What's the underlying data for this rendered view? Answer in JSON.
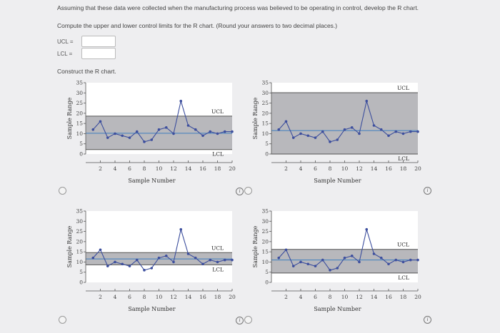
{
  "question": {
    "line1": "Assuming that these data were collected when the manufacturing process was believed to be operating in control, develop the R chart.",
    "line2": "Compute the upper and lower control limits for the R chart. (Round your answers to two decimal places.)",
    "ucl_label": "UCL =",
    "lcl_label": "LCL =",
    "ucl_value": "",
    "lcl_value": "",
    "construct": "Construct the R chart."
  },
  "info_glyph": "i",
  "chart_data": [
    {
      "type": "line",
      "xlabel": "Sample Number",
      "ylabel": "Sample Range",
      "ylim": [
        0,
        35
      ],
      "yticks": [
        0,
        5,
        10,
        15,
        20,
        25,
        30,
        35
      ],
      "xlim": [
        0,
        20
      ],
      "xticks": [
        2,
        4,
        6,
        8,
        10,
        12,
        14,
        16,
        18,
        20
      ],
      "ucl": 18.6,
      "lcl": 2.2,
      "center": 10.2,
      "ucl_label": "UCL",
      "lcl_label": "LCL",
      "x": [
        1,
        2,
        3,
        4,
        5,
        6,
        7,
        8,
        9,
        10,
        11,
        12,
        13,
        14,
        15,
        16,
        17,
        18,
        19,
        20
      ],
      "values": [
        12,
        16,
        8,
        10,
        9,
        8,
        11,
        6,
        7,
        12,
        13,
        10,
        26,
        14,
        12,
        9,
        11,
        10,
        11,
        11
      ]
    },
    {
      "type": "line",
      "xlabel": "Sample Number",
      "ylabel": "Sample Range",
      "ylim": [
        0,
        35
      ],
      "yticks": [
        0,
        5,
        10,
        15,
        20,
        25,
        30,
        35
      ],
      "xlim": [
        0,
        20
      ],
      "xticks": [
        2,
        4,
        6,
        8,
        10,
        12,
        14,
        16,
        18,
        20
      ],
      "ucl": 30.1,
      "lcl": 0.0,
      "center": 11.5,
      "ucl_label": "UCL",
      "lcl_label": "LCL",
      "x": [
        1,
        2,
        3,
        4,
        5,
        6,
        7,
        8,
        9,
        10,
        11,
        12,
        13,
        14,
        15,
        16,
        17,
        18,
        19,
        20
      ],
      "values": [
        12,
        16,
        8,
        10,
        9,
        8,
        11,
        6,
        7,
        12,
        13,
        10,
        26,
        14,
        12,
        9,
        11,
        10,
        11,
        11
      ]
    },
    {
      "type": "line",
      "xlabel": "Sample Number",
      "ylabel": "Sample Range",
      "ylim": [
        0,
        35
      ],
      "yticks": [
        0,
        5,
        10,
        15,
        20,
        25,
        30,
        35
      ],
      "xlim": [
        0,
        20
      ],
      "xticks": [
        2,
        4,
        6,
        8,
        10,
        12,
        14,
        16,
        18,
        20
      ],
      "ucl": 14.6,
      "lcl": 8.6,
      "center": 11.5,
      "ucl_label": "UCL",
      "lcl_label": "LCL",
      "x": [
        1,
        2,
        3,
        4,
        5,
        6,
        7,
        8,
        9,
        10,
        11,
        12,
        13,
        14,
        15,
        16,
        17,
        18,
        19,
        20
      ],
      "values": [
        12,
        16,
        8,
        10,
        9,
        8,
        11,
        6,
        7,
        12,
        13,
        10,
        26,
        14,
        12,
        9,
        11,
        10,
        11,
        11
      ]
    },
    {
      "type": "line",
      "xlabel": "Sample Number",
      "ylabel": "Sample Range",
      "ylim": [
        0,
        35
      ],
      "yticks": [
        0,
        5,
        10,
        15,
        20,
        25,
        30,
        35
      ],
      "xlim": [
        0,
        20
      ],
      "xticks": [
        2,
        4,
        6,
        8,
        10,
        12,
        14,
        16,
        18,
        20
      ],
      "ucl": 16.2,
      "lcl": 4.6,
      "center": 11.0,
      "ucl_label": "UCL",
      "lcl_label": "LCL",
      "x": [
        1,
        2,
        3,
        4,
        5,
        6,
        7,
        8,
        9,
        10,
        11,
        12,
        13,
        14,
        15,
        16,
        17,
        18,
        19,
        20
      ],
      "values": [
        12,
        16,
        8,
        10,
        9,
        8,
        11,
        6,
        7,
        12,
        13,
        10,
        26,
        14,
        12,
        9,
        11,
        10,
        11,
        11
      ]
    }
  ],
  "colors": {
    "band": "#b8b8bc",
    "limit_line": "#555555",
    "center_line": "#3f7fbf",
    "series": "#3d4f9e",
    "axis": "#555555"
  }
}
